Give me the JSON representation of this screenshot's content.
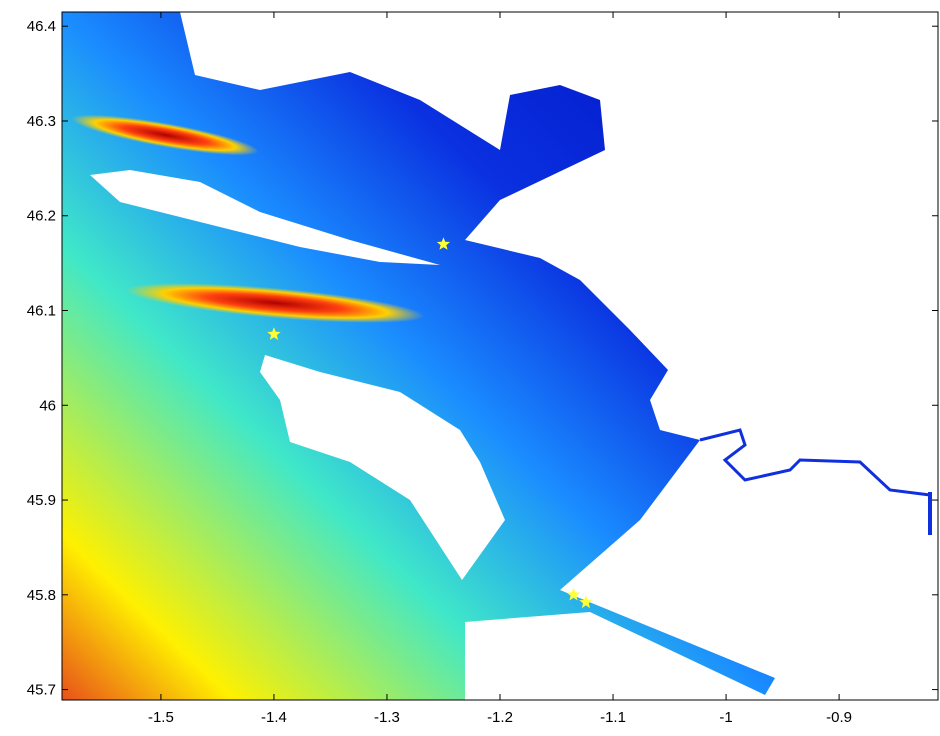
{
  "chart_data": {
    "type": "map",
    "xlim": [
      -1.5875,
      -0.8125
    ],
    "ylim": [
      45.689,
      46.415
    ],
    "xticks": [
      -1.5,
      -1.4,
      -1.3,
      -1.2,
      -1.1,
      -1,
      -0.9
    ],
    "yticks": [
      45.7,
      45.8,
      45.9,
      46,
      46.1,
      46.2,
      46.3,
      46.4
    ],
    "markers": {
      "color": "#ffff33",
      "x": [
        -1.25,
        -1.4,
        -1.135,
        -1.124
      ],
      "y": [
        46.17,
        46.075,
        45.8,
        45.792
      ]
    }
  }
}
